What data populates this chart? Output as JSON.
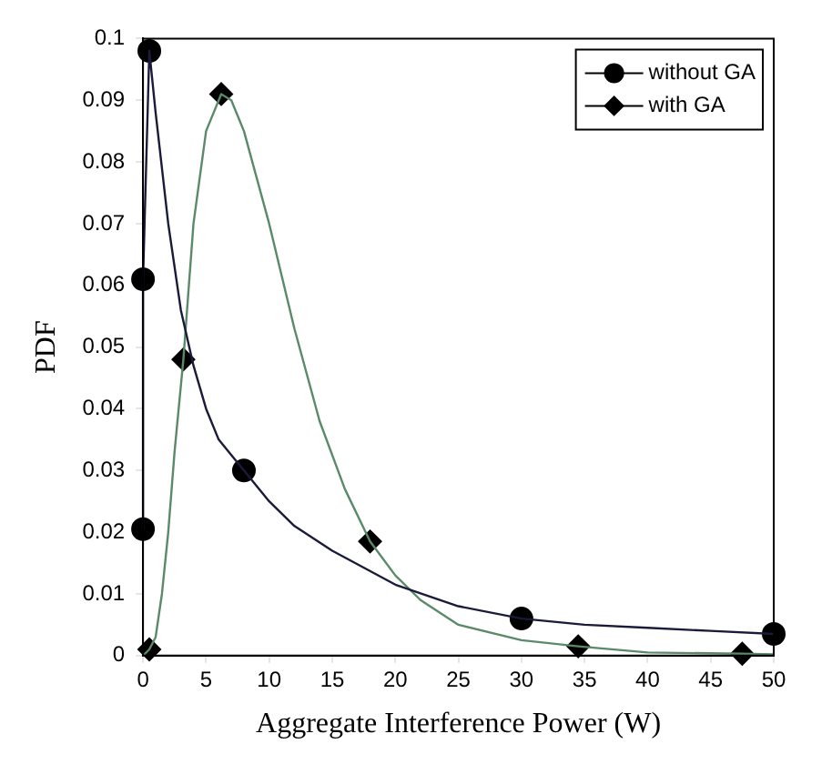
{
  "chart_data": {
    "type": "line",
    "xlabel": "Aggregate Interference Power (W)",
    "ylabel": "PDF",
    "xlim": [
      0,
      50
    ],
    "xticks": [
      0,
      5,
      10,
      15,
      20,
      25,
      30,
      35,
      40,
      45,
      50
    ],
    "ylim": [
      0,
      0.1
    ],
    "yticks": [
      0,
      0.01,
      0.02,
      0.03,
      0.04,
      0.05,
      0.06,
      0.07,
      0.08,
      0.09,
      0.1
    ],
    "grid": false,
    "legend": "top right",
    "series": [
      {
        "color": "#1a1a3a",
        "marker": "none",
        "x": [
          0,
          0,
          0.5,
          1,
          2,
          3,
          4,
          5,
          6,
          8,
          10,
          12,
          15,
          20,
          25,
          30,
          35,
          40,
          45,
          50
        ],
        "values": [
          0.0205,
          0.061,
          0.098,
          0.088,
          0.07,
          0.056,
          0.047,
          0.04,
          0.035,
          0.03,
          0.025,
          0.021,
          0.017,
          0.0115,
          0.008,
          0.006,
          0.005,
          0.0045,
          0.004,
          0.0035
        ]
      },
      {
        "color": "#5a8a6a",
        "marker": "none",
        "x": [
          0,
          0.5,
          1,
          1.5,
          2,
          2.5,
          3.2,
          4,
          5,
          6.2,
          7,
          8,
          10,
          12,
          14,
          16,
          18,
          20,
          22,
          25,
          30,
          34.5,
          40,
          47.5,
          50
        ],
        "values": [
          0,
          0.001,
          0.003,
          0.01,
          0.02,
          0.033,
          0.048,
          0.07,
          0.085,
          0.091,
          0.09,
          0.085,
          0.07,
          0.053,
          0.038,
          0.027,
          0.0185,
          0.013,
          0.009,
          0.005,
          0.0025,
          0.0015,
          0.0005,
          0.0003,
          0.0002
        ]
      },
      {
        "type": "scatter",
        "name": "without GA",
        "color": "#000000",
        "marker": "circle",
        "x": [
          0,
          0,
          0.5,
          8,
          30,
          50
        ],
        "values": [
          0.0205,
          0.061,
          0.098,
          0.03,
          0.006,
          0.0035
        ]
      },
      {
        "type": "scatter",
        "name": "with GA",
        "color": "#000000",
        "marker": "diamond",
        "x": [
          0.5,
          3.2,
          6.2,
          18,
          34.5,
          47.5
        ],
        "values": [
          0.001,
          0.048,
          0.091,
          0.0185,
          0.0015,
          0.0003
        ]
      }
    ]
  }
}
